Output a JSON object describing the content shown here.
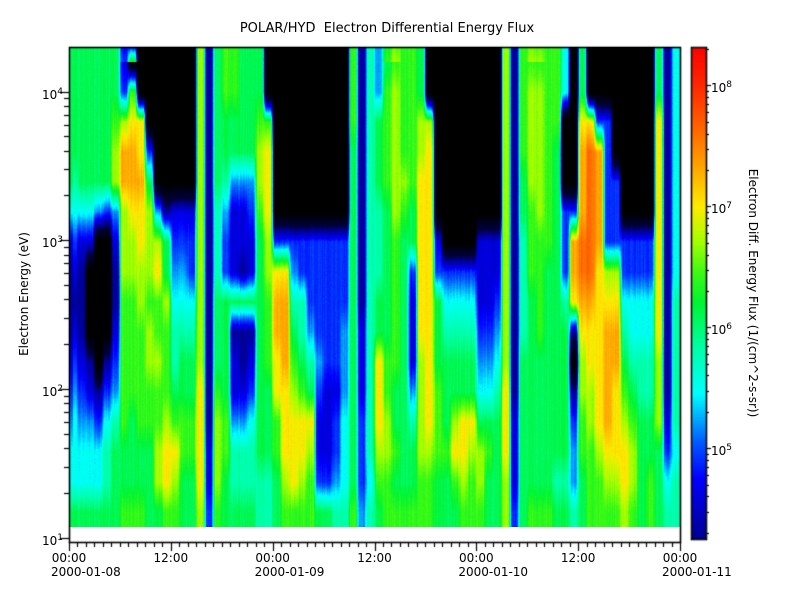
{
  "title": "POLAR/HYD  Electron Differential Energy Flux",
  "axes": {
    "y": {
      "label": "Electron Energy (eV)",
      "log_range": [
        0.97,
        4.3
      ],
      "tick_base": "10",
      "ticks": [
        {
          "exp": "4",
          "log": 4
        },
        {
          "exp": "3",
          "log": 3
        },
        {
          "exp": "2",
          "log": 2
        },
        {
          "exp": "1",
          "log": 1
        }
      ]
    },
    "x": {
      "hours_total": 72,
      "minor_step_hours": 1,
      "ticks": [
        {
          "time": "00:00",
          "date": "2000-01-08",
          "hour": 0
        },
        {
          "time": "12:00",
          "hour": 12
        },
        {
          "time": "00:00",
          "date": "2000-01-09",
          "hour": 24
        },
        {
          "time": "12:00",
          "hour": 36
        },
        {
          "time": "00:00",
          "date": "2000-01-10",
          "hour": 48
        },
        {
          "time": "12:00",
          "hour": 60
        },
        {
          "time": "00:00",
          "date": "2000-01-11",
          "hour": 72
        }
      ]
    },
    "colorbar": {
      "label": "Electron Diff. Energy Flux (1/(cm^2-s-sr))",
      "log_range": [
        4.25,
        8.31
      ],
      "tick_base": "10",
      "ticks": [
        {
          "exp": "8",
          "log": 8
        },
        {
          "exp": "7",
          "log": 7
        },
        {
          "exp": "6",
          "log": 6
        },
        {
          "exp": "5",
          "log": 5
        }
      ]
    }
  },
  "chart_data": {
    "type": "heatmap",
    "title": "POLAR/HYD  Electron Differential Energy Flux",
    "xlabel": "",
    "ylabel": "Electron Energy (eV)",
    "zlabel": "Electron Diff. Energy Flux (1/(cm^2-s-sr))",
    "x_start": "2000-01-08 00:00",
    "x_end": "2000-01-11 00:00",
    "time_bins": 72,
    "time_bin_hours": 1,
    "energy_bins": 16,
    "energy_range_ev_log10": [
      1.07,
      4.3
    ],
    "flux_log10_range": [
      4.25,
      8.31
    ],
    "no_data_char": ".",
    "flux_log10_levels": {
      ".": 3.2,
      "0": 4.3,
      "1": 4.6,
      "2": 4.9,
      "3": 5.2,
      "4": 5.5,
      "5": 5.8,
      "6": 6.1,
      "7": 6.4,
      "8": 6.7,
      "9": 7.0,
      "a": 7.3,
      "b": 7.6
    },
    "rows_top_to_bottom": [
      "6666661........80677666..........705367776.........80777774.6........604",
      "66666627.......80677666..........705378776.........80788774.6........604",
      "666667899......806666677.........7056787788........8078877..9922.....904",
      "666668aa92.....806666689.........6056787789........8078876..aba2.....904",
      "566668aaa6.....806533389.........6056788799........8068876..aba22....904",
      "444323899830111805311279.........6055687699........806787622aba22....904",
      "211..188988622280521116822222222260556766991....11180577762abba222222904",
      "10...088889633280521016899322222260556762992222211180577662abb9882222904",
      "00...0778778444806666667aa5522222605667619964444112805676659aa9994444905",
      "10...1777877555806600067aa6532223615667619965555223805676660999aa5444905",
      "210.027778875668066101679a765322361597761896666633480666666.899aa6555805",
      "321023777777666907611266998762113615976638976666445906666660889a97655805",
      "433245767778777908733466799991124625986658976899666916666662789a98766815",
      "444456666689977918755566799981124625887668877998876916666663778999866624",
      "444456666689866918655555689872234624776667766787866816666553677889867645",
      "666666777667766827666655677776655735677777766677766826777665677778767655"
    ],
    "colormap_stops": [
      [
        3.3,
        "#000000"
      ],
      [
        4.0,
        "#00003c"
      ],
      [
        4.25,
        "#000091"
      ],
      [
        4.75,
        "#0000ff"
      ],
      [
        5.05,
        "#005aff"
      ],
      [
        5.45,
        "#00ffff"
      ],
      [
        5.85,
        "#00ffa0"
      ],
      [
        6.2,
        "#00f532"
      ],
      [
        6.45,
        "#3cfa14"
      ],
      [
        6.7,
        "#a0ff00"
      ],
      [
        7.0,
        "#ffeb00"
      ],
      [
        7.35,
        "#ffa000"
      ],
      [
        7.65,
        "#ff6400"
      ],
      [
        8.0,
        "#ff2800"
      ],
      [
        8.35,
        "#f80000"
      ]
    ],
    "frame_color": "#000000",
    "background_color": "#ffffff"
  }
}
